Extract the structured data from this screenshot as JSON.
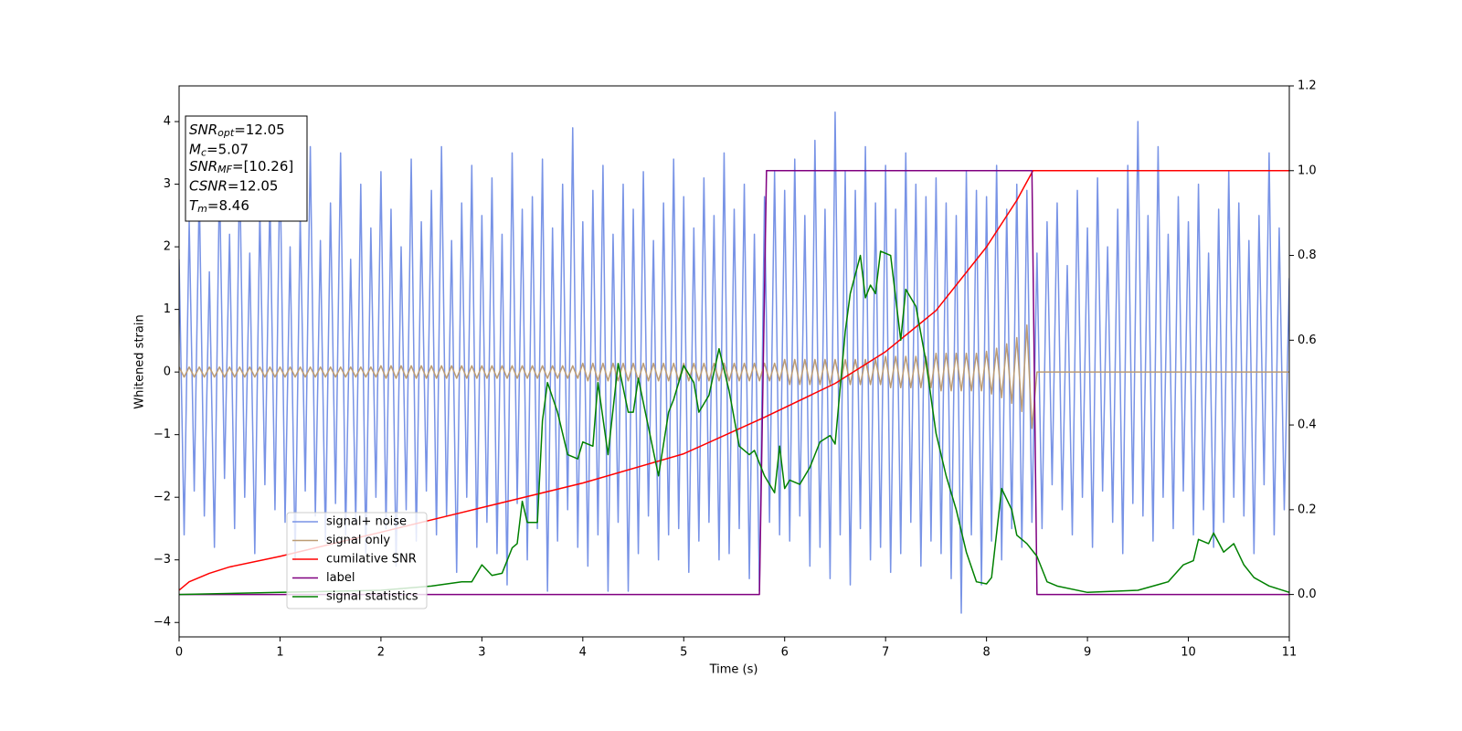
{
  "chart_data": {
    "type": "line",
    "xlabel": "Time (s)",
    "ylabel": "Whitened strain",
    "xlim": [
      0,
      11
    ],
    "ylim": [
      -4.23,
      4.57
    ],
    "y2lim": [
      -0.1,
      1.2
    ],
    "xticks": [
      0,
      1,
      2,
      3,
      4,
      5,
      6,
      7,
      8,
      9,
      10,
      11
    ],
    "yticks": [
      {
        "value": -4,
        "label": "−4"
      },
      {
        "value": -3,
        "label": "−3"
      },
      {
        "value": -2,
        "label": "−2"
      },
      {
        "value": -1,
        "label": "−1"
      },
      0,
      1,
      2,
      3,
      4
    ],
    "y2ticks": [
      {
        "value": 0,
        "label": "0.0"
      },
      0.2,
      0.4,
      0.6,
      0.8,
      {
        "value": 1,
        "label": "1.0"
      },
      1.2
    ],
    "grid": false,
    "legend": "lower left",
    "annotations": [
      {
        "main": "SNR",
        "sub": "opt",
        "rest": "=12.05"
      },
      {
        "main": "M",
        "sub": "c",
        "rest": "=5.07"
      },
      {
        "main": "SNR",
        "sub": "MF",
        "rest": "=[10.26]"
      },
      {
        "main": "CSNR",
        "rest": "=12.05"
      },
      {
        "main": "T",
        "sub": "m",
        "rest": "=8.46"
      }
    ],
    "x": [
      0,
      0.05,
      0.1,
      0.15,
      0.2,
      0.25,
      0.3,
      0.35,
      0.4,
      0.45,
      0.5,
      0.55,
      0.6,
      0.65,
      0.7,
      0.75,
      0.8,
      0.85,
      0.9,
      0.95,
      1,
      1.05,
      1.1,
      1.15,
      1.2,
      1.25,
      1.3,
      1.35,
      1.4,
      1.45,
      1.5,
      1.55,
      1.6,
      1.65,
      1.7,
      1.75,
      1.8,
      1.85,
      1.9,
      1.95,
      2,
      2.05,
      2.1,
      2.15,
      2.2,
      2.25,
      2.3,
      2.35,
      2.4,
      2.45,
      2.5,
      2.55,
      2.6,
      2.65,
      2.7,
      2.75,
      2.8,
      2.85,
      2.9,
      2.95,
      3,
      3.05,
      3.1,
      3.15,
      3.2,
      3.25,
      3.3,
      3.35,
      3.4,
      3.45,
      3.5,
      3.55,
      3.6,
      3.65,
      3.7,
      3.75,
      3.8,
      3.85,
      3.9,
      3.95,
      4,
      4.05,
      4.1,
      4.15,
      4.2,
      4.25,
      4.3,
      4.35,
      4.4,
      4.45,
      4.5,
      4.55,
      4.6,
      4.65,
      4.7,
      4.75,
      4.8,
      4.85,
      4.9,
      4.95,
      5,
      5.05,
      5.1,
      5.15,
      5.2,
      5.25,
      5.3,
      5.35,
      5.4,
      5.45,
      5.5,
      5.55,
      5.6,
      5.65,
      5.7,
      5.75,
      5.8,
      5.85,
      5.9,
      5.95,
      6,
      6.05,
      6.1,
      6.15,
      6.2,
      6.25,
      6.3,
      6.35,
      6.4,
      6.45,
      6.5,
      6.55,
      6.6,
      6.65,
      6.7,
      6.75,
      6.8,
      6.85,
      6.9,
      6.95,
      7,
      7.05,
      7.1,
      7.15,
      7.2,
      7.25,
      7.3,
      7.35,
      7.4,
      7.45,
      7.5,
      7.55,
      7.6,
      7.65,
      7.7,
      7.75,
      7.8,
      7.85,
      7.9,
      7.95,
      8,
      8.05,
      8.1,
      8.15,
      8.2,
      8.25,
      8.3,
      8.35,
      8.4,
      8.45,
      8.5,
      8.55,
      8.6,
      8.65,
      8.7,
      8.75,
      8.8,
      8.85,
      8.9,
      8.95,
      9,
      9.05,
      9.1,
      9.15,
      9.2,
      9.25,
      9.3,
      9.35,
      9.4,
      9.45,
      9.5,
      9.55,
      9.6,
      9.65,
      9.7,
      9.75,
      9.8,
      9.85,
      9.9,
      9.95,
      10,
      10.05,
      10.1,
      10.15,
      10.2,
      10.25,
      10.3,
      10.35,
      10.4,
      10.45,
      10.5,
      10.55,
      10.6,
      10.65,
      10.7,
      10.75,
      10.8,
      10.85,
      10.9,
      10.95,
      11
    ],
    "series": [
      {
        "name": "signal+ noise",
        "color": "#7893e6",
        "values": [
          1.8,
          -2.6,
          2.4,
          -1.9,
          2.9,
          -2.3,
          1.6,
          -2.8,
          3.1,
          -1.7,
          2.2,
          -2.5,
          3.3,
          -2.0,
          1.9,
          -2.9,
          2.6,
          -1.8,
          2.8,
          -2.2,
          3.4,
          -2.4,
          2.0,
          -3.0,
          2.5,
          -1.9,
          3.6,
          -2.3,
          2.1,
          -2.7,
          2.7,
          -2.1,
          3.5,
          -2.6,
          1.8,
          -2.4,
          3.0,
          -2.9,
          2.3,
          -2.0,
          3.2,
          -2.5,
          2.6,
          -3.1,
          2.0,
          -2.2,
          3.4,
          -2.7,
          2.4,
          -1.9,
          2.9,
          -2.6,
          3.6,
          -2.3,
          2.1,
          -3.2,
          2.7,
          -2.0,
          3.3,
          -2.8,
          2.5,
          -2.4,
          3.1,
          -2.9,
          2.2,
          -3.4,
          3.5,
          -2.1,
          2.6,
          -3.0,
          2.8,
          -2.5,
          3.4,
          -3.5,
          2.3,
          -2.7,
          3.0,
          -2.2,
          3.9,
          -2.8,
          2.4,
          -3.1,
          2.9,
          -2.6,
          3.3,
          -3.5,
          2.2,
          -2.4,
          3.0,
          -3.5,
          2.6,
          -2.9,
          3.2,
          -2.3,
          2.1,
          -3.0,
          2.7,
          -2.6,
          3.4,
          -2.5,
          2.8,
          -3.2,
          2.3,
          -2.7,
          3.1,
          -2.4,
          2.5,
          -3.0,
          3.5,
          -2.9,
          2.6,
          -2.5,
          3.0,
          -3.3,
          2.2,
          -3.5,
          2.8,
          -2.4,
          3.2,
          -2.6,
          2.9,
          -2.7,
          3.4,
          -2.3,
          2.5,
          -3.1,
          3.7,
          -2.8,
          2.6,
          -3.3,
          4.15,
          -2.6,
          3.2,
          -3.4,
          2.9,
          -2.5,
          3.6,
          -3.0,
          2.7,
          -2.8,
          3.3,
          -3.2,
          2.6,
          -2.9,
          3.5,
          -2.4,
          3.0,
          -3.1,
          2.8,
          -2.7,
          3.1,
          -2.9,
          2.7,
          -3.3,
          2.5,
          -3.85,
          3.2,
          -2.6,
          2.9,
          -3.4,
          2.8,
          -2.7,
          3.3,
          -3.0,
          2.6,
          -2.5,
          3.0,
          -2.8,
          2.9,
          -2.4,
          1.9,
          -2.5,
          2.4,
          -1.8,
          2.7,
          -2.2,
          1.7,
          -2.6,
          2.9,
          -2.0,
          2.3,
          -2.8,
          3.1,
          -1.9,
          2.0,
          -2.4,
          2.6,
          -2.9,
          3.3,
          -2.1,
          4.0,
          -2.3,
          2.5,
          -2.7,
          3.6,
          -2.0,
          2.2,
          -2.5,
          2.8,
          -1.9,
          2.4,
          -2.6,
          3.0,
          -2.2,
          1.9,
          -2.8,
          2.6,
          -2.4,
          3.2,
          -2.0,
          2.7,
          -2.3,
          2.1,
          -2.9,
          2.5,
          -1.8,
          3.5,
          -2.6,
          2.3,
          -2.2,
          1.5
        ]
      },
      {
        "name": "signal only",
        "color": "#bc9c74",
        "values": [
          0.08,
          -0.08,
          0.08,
          -0.08,
          0.08,
          -0.08,
          0.08,
          -0.08,
          0.08,
          -0.08,
          0.08,
          -0.08,
          0.08,
          -0.08,
          0.08,
          -0.08,
          0.08,
          -0.08,
          0.08,
          -0.08,
          0.08,
          -0.08,
          0.08,
          -0.08,
          0.08,
          -0.08,
          0.08,
          -0.08,
          0.08,
          -0.08,
          0.08,
          -0.08,
          0.08,
          -0.08,
          0.08,
          -0.08,
          0.08,
          -0.08,
          0.08,
          -0.08,
          0.1,
          -0.1,
          0.1,
          -0.1,
          0.1,
          -0.1,
          0.1,
          -0.1,
          0.1,
          -0.1,
          0.1,
          -0.1,
          0.1,
          -0.1,
          0.1,
          -0.1,
          0.1,
          -0.1,
          0.1,
          -0.1,
          0.1,
          -0.1,
          0.1,
          -0.1,
          0.1,
          -0.1,
          0.1,
          -0.1,
          0.1,
          -0.1,
          0.1,
          -0.1,
          0.1,
          -0.1,
          0.1,
          -0.1,
          0.1,
          -0.1,
          0.1,
          -0.1,
          0.14,
          -0.14,
          0.14,
          -0.14,
          0.14,
          -0.14,
          0.14,
          -0.14,
          0.14,
          -0.14,
          0.14,
          -0.14,
          0.14,
          -0.14,
          0.14,
          -0.14,
          0.14,
          -0.14,
          0.14,
          -0.14,
          0.14,
          -0.14,
          0.14,
          -0.14,
          0.14,
          -0.14,
          0.14,
          -0.14,
          0.14,
          -0.14,
          0.14,
          -0.14,
          0.14,
          -0.14,
          0.14,
          -0.14,
          0.14,
          -0.14,
          0.14,
          -0.14,
          0.2,
          -0.2,
          0.2,
          -0.2,
          0.2,
          -0.2,
          0.2,
          -0.2,
          0.2,
          -0.2,
          0.2,
          -0.2,
          0.2,
          -0.2,
          0.2,
          -0.2,
          0.2,
          -0.2,
          0.2,
          -0.2,
          0.25,
          -0.25,
          0.25,
          -0.25,
          0.25,
          -0.25,
          0.25,
          -0.25,
          0.25,
          -0.25,
          0.3,
          -0.3,
          0.3,
          -0.3,
          0.3,
          -0.3,
          0.3,
          -0.3,
          0.3,
          -0.3,
          0.33,
          -0.35,
          0.38,
          -0.41,
          0.45,
          -0.5,
          0.55,
          -0.63,
          0.75,
          -0.9,
          0,
          0,
          0,
          0,
          0,
          0,
          0,
          0,
          0,
          0,
          0,
          0,
          0,
          0,
          0,
          0,
          0,
          0,
          0,
          0,
          0,
          0,
          0,
          0,
          0,
          0,
          0,
          0,
          0,
          0,
          0,
          0,
          0,
          0,
          0,
          0,
          0,
          0,
          0,
          0,
          0,
          0,
          0,
          0,
          0,
          0,
          0,
          0,
          0,
          0,
          0
        ]
      },
      {
        "name": "cumilative SNR",
        "color": "#ff0000",
        "axis": "y2",
        "x": [
          0,
          0.1,
          0.3,
          0.5,
          1,
          2,
          3,
          4,
          5,
          5.8,
          6.5,
          7,
          7.5,
          8,
          8.3,
          8.46,
          11
        ],
        "values": [
          0.01,
          0.03,
          0.05,
          0.065,
          0.09,
          0.147,
          0.205,
          0.263,
          0.332,
          0.418,
          0.498,
          0.573,
          0.67,
          0.82,
          0.93,
          1,
          1
        ]
      },
      {
        "name": "label",
        "color": "#800080",
        "axis": "y2",
        "x": [
          0,
          5.75,
          5.82,
          8.45,
          8.5,
          11
        ],
        "values": [
          0,
          0,
          1,
          1,
          0,
          0
        ]
      },
      {
        "name": "signal statistics",
        "color": "#008000",
        "axis": "y2",
        "x": [
          0,
          1,
          2,
          2.5,
          2.8,
          2.9,
          3,
          3.1,
          3.2,
          3.3,
          3.35,
          3.4,
          3.45,
          3.55,
          3.6,
          3.65,
          3.75,
          3.85,
          3.95,
          4,
          4.1,
          4.15,
          4.25,
          4.35,
          4.45,
          4.5,
          4.55,
          4.75,
          4.85,
          4.9,
          5,
          5.1,
          5.15,
          5.25,
          5.35,
          5.45,
          5.55,
          5.65,
          5.7,
          5.8,
          5.9,
          5.95,
          6,
          6.05,
          6.15,
          6.25,
          6.35,
          6.45,
          6.5,
          6.6,
          6.65,
          6.75,
          6.8,
          6.85,
          6.9,
          6.95,
          7.05,
          7.15,
          7.2,
          7.3,
          7.4,
          7.5,
          7.6,
          7.7,
          7.8,
          7.9,
          8,
          8.05,
          8.15,
          8.25,
          8.3,
          8.4,
          8.5,
          8.6,
          8.7,
          9,
          9.5,
          9.8,
          9.95,
          10.05,
          10.1,
          10.2,
          10.25,
          10.35,
          10.45,
          10.55,
          10.65,
          10.8,
          11
        ],
        "values": [
          0,
          0.005,
          0.01,
          0.02,
          0.03,
          0.03,
          0.07,
          0.045,
          0.05,
          0.11,
          0.12,
          0.22,
          0.17,
          0.17,
          0.41,
          0.5,
          0.43,
          0.33,
          0.32,
          0.36,
          0.35,
          0.5,
          0.33,
          0.545,
          0.43,
          0.43,
          0.51,
          0.28,
          0.43,
          0.46,
          0.54,
          0.5,
          0.43,
          0.47,
          0.58,
          0.48,
          0.35,
          0.33,
          0.34,
          0.28,
          0.24,
          0.35,
          0.25,
          0.27,
          0.26,
          0.3,
          0.36,
          0.375,
          0.355,
          0.62,
          0.71,
          0.8,
          0.7,
          0.73,
          0.71,
          0.81,
          0.8,
          0.6,
          0.72,
          0.68,
          0.55,
          0.38,
          0.28,
          0.2,
          0.1,
          0.03,
          0.025,
          0.04,
          0.25,
          0.2,
          0.14,
          0.12,
          0.09,
          0.03,
          0.02,
          0.005,
          0.01,
          0.03,
          0.07,
          0.08,
          0.13,
          0.12,
          0.145,
          0.1,
          0.12,
          0.07,
          0.04,
          0.02,
          0.005
        ]
      }
    ]
  }
}
